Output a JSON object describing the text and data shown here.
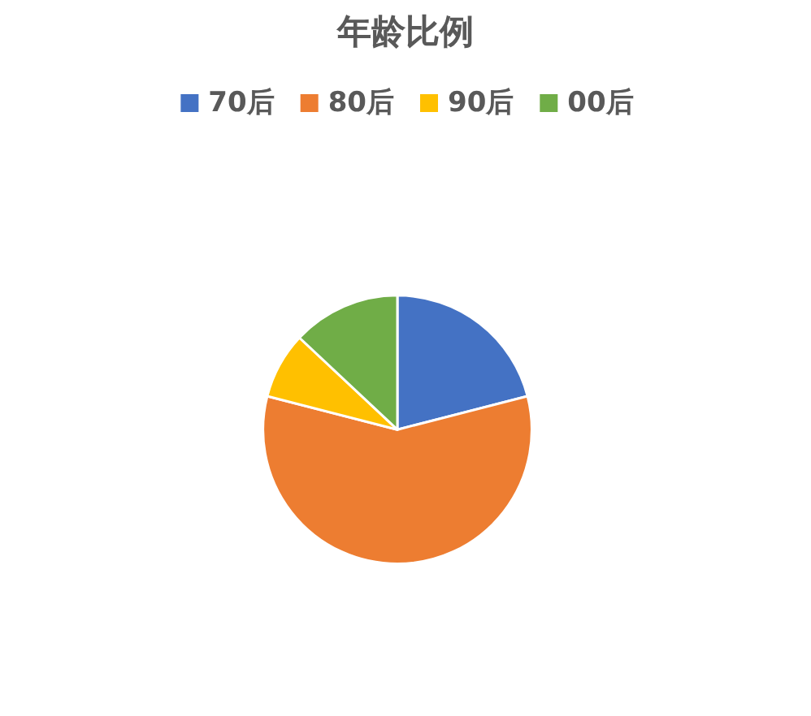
{
  "chart_data": {
    "type": "pie",
    "title": "年龄比例",
    "categories": [
      "70后",
      "80后",
      "90后",
      "00后"
    ],
    "values": [
      21,
      58,
      8,
      13
    ],
    "colors": [
      "#4472c4",
      "#ed7d31",
      "#ffc000",
      "#70ad47"
    ],
    "legend": "top"
  }
}
